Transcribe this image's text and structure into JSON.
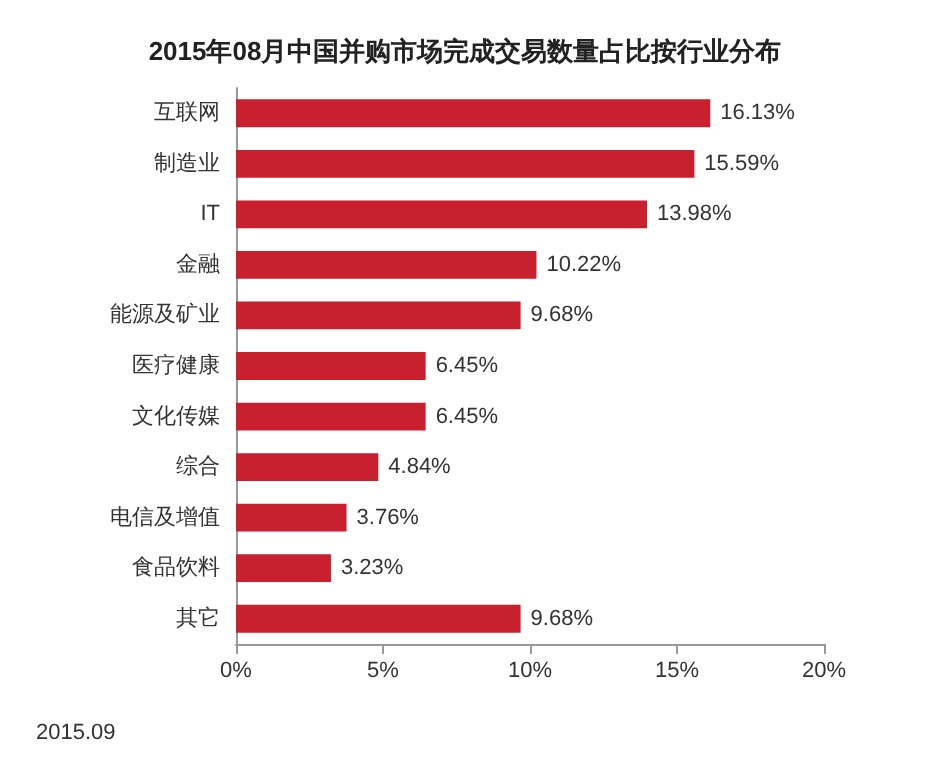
{
  "chart_data": {
    "type": "bar",
    "orientation": "horizontal",
    "title": "2015年08月中国并购市场完成交易数量占比按行业分布",
    "categories": [
      "互联网",
      "制造业",
      "IT",
      "金融",
      "能源及矿业",
      "医疗健康",
      "文化传媒",
      "综合",
      "电信及增值",
      "食品饮料",
      "其它"
    ],
    "values": [
      16.13,
      15.59,
      13.98,
      10.22,
      9.68,
      6.45,
      6.45,
      4.84,
      3.76,
      3.23,
      9.68
    ],
    "value_labels": [
      "16.13%",
      "15.59%",
      "13.98%",
      "10.22%",
      "9.68%",
      "6.45%",
      "6.45%",
      "4.84%",
      "3.76%",
      "3.23%",
      "9.68%"
    ],
    "color": "#c8202f",
    "xlim": [
      0,
      20
    ],
    "xticks": [
      {
        "value": 0,
        "label": "0%"
      },
      {
        "value": 5,
        "label": "5%"
      },
      {
        "value": 10,
        "label": "10%"
      },
      {
        "value": 15,
        "label": "15%"
      },
      {
        "value": 20,
        "label": "20%"
      }
    ],
    "annotations": [
      "2015.09"
    ]
  }
}
